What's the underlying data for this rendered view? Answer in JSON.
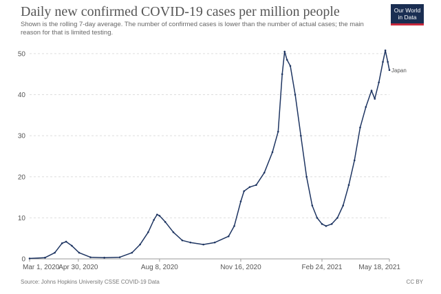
{
  "header": {
    "title": "Daily new confirmed COVID-19 cases per million people",
    "subtitle": "Shown is the rolling 7-day average. The number of confirmed cases is lower than the number of actual cases; the main reason for that is limited testing.",
    "logo_line1": "Our World",
    "logo_line2": "in Data"
  },
  "footer": {
    "source": "Source: Johns Hopkins University CSSE COVID-19 Data",
    "license": "CC BY"
  },
  "colors": {
    "line": "#1d3461",
    "grid": "#dddddd",
    "axis": "#999999",
    "logo_bg": "#1a2e52",
    "logo_accent": "#c8283c"
  },
  "chart_data": {
    "type": "line",
    "title": "Daily new confirmed COVID-19 cases per million people",
    "subtitle": "Shown is the rolling 7-day average. The number of confirmed cases is lower than the number of actual cases; the main reason for that is limited testing.",
    "x_range": [
      "2020-03-01",
      "2021-05-18"
    ],
    "ylim": [
      0,
      52
    ],
    "yticks": [
      0,
      10,
      20,
      30,
      40,
      50
    ],
    "xticks": [
      {
        "date": "2020-03-01",
        "label": "Mar 1, 2020"
      },
      {
        "date": "2020-04-30",
        "label": "Apr 30, 2020"
      },
      {
        "date": "2020-08-08",
        "label": "Aug 8, 2020"
      },
      {
        "date": "2020-11-16",
        "label": "Nov 16, 2020"
      },
      {
        "date": "2021-02-24",
        "label": "Feb 24, 2021"
      },
      {
        "date": "2021-05-18",
        "label": "May 18, 2021"
      }
    ],
    "grid": true,
    "series": [
      {
        "name": "Japan",
        "points": [
          [
            "2020-03-01",
            0.1
          ],
          [
            "2020-03-20",
            0.3
          ],
          [
            "2020-04-01",
            1.5
          ],
          [
            "2020-04-10",
            3.8
          ],
          [
            "2020-04-15",
            4.2
          ],
          [
            "2020-04-22",
            3.2
          ],
          [
            "2020-05-01",
            1.5
          ],
          [
            "2020-05-15",
            0.4
          ],
          [
            "2020-06-01",
            0.3
          ],
          [
            "2020-06-20",
            0.4
          ],
          [
            "2020-07-05",
            1.5
          ],
          [
            "2020-07-15",
            3.5
          ],
          [
            "2020-07-25",
            6.5
          ],
          [
            "2020-08-01",
            9.5
          ],
          [
            "2020-08-05",
            10.8
          ],
          [
            "2020-08-08",
            10.5
          ],
          [
            "2020-08-15",
            9.0
          ],
          [
            "2020-08-25",
            6.5
          ],
          [
            "2020-09-05",
            4.5
          ],
          [
            "2020-09-15",
            4.0
          ],
          [
            "2020-10-01",
            3.5
          ],
          [
            "2020-10-15",
            4.0
          ],
          [
            "2020-11-01",
            5.5
          ],
          [
            "2020-11-08",
            8.0
          ],
          [
            "2020-11-16",
            14.0
          ],
          [
            "2020-11-20",
            16.5
          ],
          [
            "2020-11-27",
            17.5
          ],
          [
            "2020-12-05",
            18.0
          ],
          [
            "2020-12-15",
            21.0
          ],
          [
            "2020-12-25",
            26.0
          ],
          [
            "2021-01-01",
            31.0
          ],
          [
            "2021-01-06",
            45.0
          ],
          [
            "2021-01-09",
            50.5
          ],
          [
            "2021-01-12",
            48.5
          ],
          [
            "2021-01-16",
            47.0
          ],
          [
            "2021-01-22",
            40.0
          ],
          [
            "2021-01-29",
            30.0
          ],
          [
            "2021-02-05",
            20.0
          ],
          [
            "2021-02-12",
            13.0
          ],
          [
            "2021-02-18",
            10.0
          ],
          [
            "2021-02-24",
            8.5
          ],
          [
            "2021-03-01",
            8.0
          ],
          [
            "2021-03-08",
            8.5
          ],
          [
            "2021-03-15",
            10.0
          ],
          [
            "2021-03-22",
            13.0
          ],
          [
            "2021-03-29",
            18.0
          ],
          [
            "2021-04-05",
            24.0
          ],
          [
            "2021-04-12",
            32.0
          ],
          [
            "2021-04-19",
            37.0
          ],
          [
            "2021-04-26",
            41.0
          ],
          [
            "2021-04-30",
            39.0
          ],
          [
            "2021-05-05",
            43.0
          ],
          [
            "2021-05-10",
            48.0
          ],
          [
            "2021-05-13",
            50.8
          ],
          [
            "2021-05-16",
            48.0
          ],
          [
            "2021-05-18",
            46.0
          ]
        ]
      }
    ]
  }
}
